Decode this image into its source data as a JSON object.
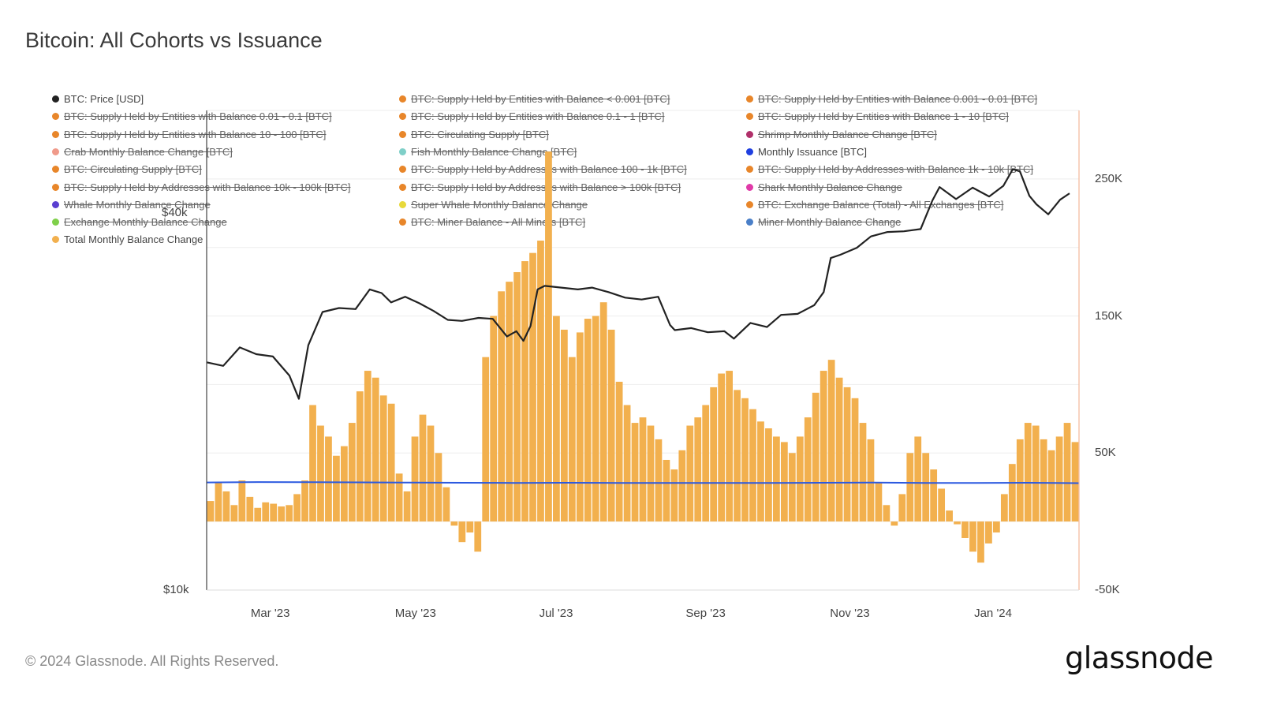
{
  "title": "Bitcoin: All Cohorts vs Issuance",
  "footer": {
    "copyright": "© 2024 Glassnode. All Rights Reserved.",
    "brand": "glassnode"
  },
  "colors": {
    "price_line": "#222222",
    "bars": "#f2b04e",
    "issuance": "#2b59e0",
    "grid": "#eeeeee",
    "right_axis": "#f4b89a"
  },
  "legend": [
    {
      "label": "BTC: Price [USD]",
      "color": "#222222",
      "active": true
    },
    {
      "label": "BTC: Supply Held by Entities with Balance < 0.001 [BTC]",
      "color": "#e8862a",
      "active": false
    },
    {
      "label": "BTC: Supply Held by Entities with Balance 0.001 - 0.01 [BTC]",
      "color": "#e8862a",
      "active": false
    },
    {
      "label": "BTC: Supply Held by Entities with Balance 0.01 - 0.1 [BTC]",
      "color": "#e8862a",
      "active": false
    },
    {
      "label": "BTC: Supply Held by Entities with Balance 0.1 - 1 [BTC]",
      "color": "#e8862a",
      "active": false
    },
    {
      "label": "BTC: Supply Held by Entities with Balance 1 - 10 [BTC]",
      "color": "#e8862a",
      "active": false
    },
    {
      "label": "BTC: Supply Held by Entities with Balance 10 - 100 [BTC]",
      "color": "#e8862a",
      "active": false
    },
    {
      "label": "BTC: Circulating Supply [BTC]",
      "color": "#e8862a",
      "active": false
    },
    {
      "label": "Shrimp Monthly Balance Change [BTC]",
      "color": "#b0306a",
      "active": false
    },
    {
      "label": "Crab Monthly Balance Change [BTC]",
      "color": "#f09a8a",
      "active": false
    },
    {
      "label": "Fish Monthly Balance Change [BTC]",
      "color": "#7fcfc8",
      "active": false
    },
    {
      "label": "Monthly Issuance [BTC]",
      "color": "#1f3fe0",
      "active": true
    },
    {
      "label": "BTC: Circulating Supply [BTC]",
      "color": "#e8862a",
      "active": false
    },
    {
      "label": "BTC: Supply Held by Addresses with Balance 100 - 1k [BTC]",
      "color": "#e8862a",
      "active": false
    },
    {
      "label": "BTC: Supply Held by Addresses with Balance 1k - 10k [BTC]",
      "color": "#e8862a",
      "active": false
    },
    {
      "label": "BTC: Supply Held by Addresses with Balance 10k - 100k [BTC]",
      "color": "#e8862a",
      "active": false
    },
    {
      "label": "BTC: Supply Held by Addresses with Balance > 100k [BTC]",
      "color": "#e8862a",
      "active": false
    },
    {
      "label": "Shark Monthly Balance Change",
      "color": "#e03aa8",
      "active": false
    },
    {
      "label": "Whale Monthly Balance Change",
      "color": "#5a3fd0",
      "active": false
    },
    {
      "label": "Super Whale Monthly Balance Change",
      "color": "#e8d93a",
      "active": false
    },
    {
      "label": "BTC: Exchange Balance (Total) - All Exchanges [BTC]",
      "color": "#e8862a",
      "active": false
    },
    {
      "label": "Exchange Monthly Balance Change",
      "color": "#7fd04a",
      "active": false
    },
    {
      "label": "BTC: Miner Balance - All Miners [BTC]",
      "color": "#e8862a",
      "active": false
    },
    {
      "label": "Miner Monthly Balance Change",
      "color": "#4a7fc8",
      "active": false
    },
    {
      "label": "Total Monthly Balance Change",
      "color": "#f2b04e",
      "active": true
    }
  ],
  "chart_data": {
    "type": "bar",
    "title": "Bitcoin: All Cohorts vs Issuance",
    "x_ticks": [
      "Mar '23",
      "May '23",
      "Jul '23",
      "Sep '23",
      "Nov '23",
      "Jan '24"
    ],
    "y_left_ticks": [
      "$40k",
      "$10k"
    ],
    "y_left_scale": "log",
    "y_right_ticks": [
      "250K",
      "150K",
      "50K",
      "-50K"
    ],
    "y_right_range": [
      -50000,
      300000
    ],
    "grid": true,
    "series": [
      {
        "name": "Total Monthly Balance Change",
        "type": "bar",
        "values": [
          15000,
          28000,
          22000,
          12000,
          30000,
          18000,
          10000,
          14000,
          13000,
          11000,
          12000,
          20000,
          30000,
          85000,
          70000,
          62000,
          48000,
          55000,
          72000,
          95000,
          110000,
          105000,
          92000,
          86000,
          35000,
          22000,
          62000,
          78000,
          70000,
          50000,
          25000,
          -3000,
          -15000,
          -8000,
          -22000,
          120000,
          150000,
          168000,
          175000,
          182000,
          190000,
          196000,
          205000,
          270000,
          150000,
          140000,
          120000,
          138000,
          148000,
          150000,
          160000,
          140000,
          102000,
          85000,
          72000,
          76000,
          70000,
          60000,
          45000,
          38000,
          52000,
          70000,
          76000,
          85000,
          98000,
          108000,
          110000,
          96000,
          90000,
          82000,
          73000,
          68000,
          62000,
          58000,
          50000,
          62000,
          76000,
          94000,
          110000,
          118000,
          105000,
          98000,
          90000,
          72000,
          60000,
          28000,
          12000,
          -3000,
          20000,
          50000,
          62000,
          50000,
          38000,
          24000,
          8000,
          -2000,
          -12000,
          -22000,
          -30000,
          -16000,
          -8000,
          20000,
          42000,
          60000,
          72000,
          70000,
          60000,
          52000,
          62000,
          72000,
          58000
        ]
      },
      {
        "name": "Monthly Issuance [BTC]",
        "type": "line",
        "values": [
          28500,
          28800,
          28700,
          28600,
          28400,
          28300,
          28200,
          28300,
          28200,
          28100,
          28100,
          28200,
          28300,
          28400,
          28200,
          28100,
          28300,
          28000
        ]
      },
      {
        "name": "BTC: Price [USD]",
        "type": "line",
        "x": [
          "2023-02-01",
          "2023-02-08",
          "2023-02-15",
          "2023-02-22",
          "2023-03-01",
          "2023-03-08",
          "2023-03-12",
          "2023-03-16",
          "2023-03-22",
          "2023-03-29",
          "2023-04-05",
          "2023-04-11",
          "2023-04-16",
          "2023-04-20",
          "2023-04-26",
          "2023-05-02",
          "2023-05-08",
          "2023-05-14",
          "2023-05-20",
          "2023-05-27",
          "2023-06-02",
          "2023-06-08",
          "2023-06-12",
          "2023-06-15",
          "2023-06-18",
          "2023-06-21",
          "2023-06-24",
          "2023-07-01",
          "2023-07-08",
          "2023-07-14",
          "2023-07-21",
          "2023-07-28",
          "2023-08-04",
          "2023-08-11",
          "2023-08-16",
          "2023-08-18",
          "2023-08-25",
          "2023-09-01",
          "2023-09-08",
          "2023-09-12",
          "2023-09-19",
          "2023-09-26",
          "2023-10-02",
          "2023-10-09",
          "2023-10-16",
          "2023-10-20",
          "2023-10-23",
          "2023-10-27",
          "2023-11-03",
          "2023-11-09",
          "2023-11-16",
          "2023-11-23",
          "2023-11-30",
          "2023-12-05",
          "2023-12-08",
          "2023-12-15",
          "2023-12-22",
          "2023-12-29",
          "2024-01-04",
          "2024-01-08",
          "2024-01-11",
          "2024-01-15",
          "2024-01-18",
          "2024-01-23",
          "2024-01-28",
          "2024-02-01"
        ],
        "values": [
          23100,
          22800,
          24400,
          23800,
          23600,
          22000,
          20200,
          24600,
          27800,
          28200,
          28100,
          30200,
          29800,
          28800,
          29400,
          28700,
          27900,
          27000,
          26900,
          27200,
          27100,
          25400,
          25900,
          25000,
          26400,
          30200,
          30600,
          30400,
          30200,
          30400,
          29900,
          29300,
          29100,
          29400,
          26500,
          26000,
          26200,
          25800,
          25900,
          25200,
          26700,
          26300,
          27500,
          27600,
          28500,
          29900,
          33900,
          34300,
          35200,
          36700,
          37300,
          37400,
          37700,
          41900,
          44000,
          42100,
          43900,
          42500,
          44200,
          47000,
          46600,
          42600,
          41300,
          39800,
          42000,
          43000
        ]
      }
    ]
  }
}
